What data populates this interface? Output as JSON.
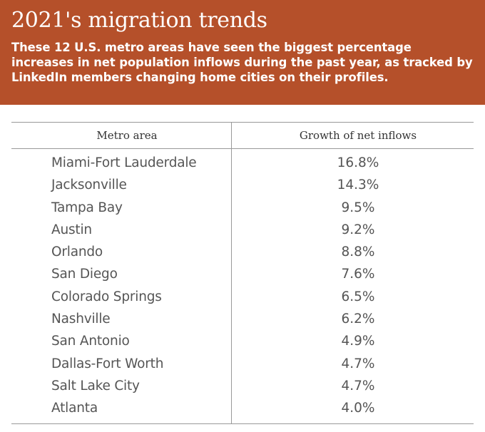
{
  "header": {
    "title": "2021's migration trends",
    "subtitle": "These 12 U.S. metro areas have seen the biggest percentage increases in net population inflows during the past year, as tracked by LinkedIn members changing home cities on their profiles.",
    "background_color": "#b5502a"
  },
  "table": {
    "columns": [
      "Metro area",
      "Growth of net  inflows"
    ],
    "rows": [
      {
        "metro": "Miami-Fort Lauderdale",
        "growth": "16.8%"
      },
      {
        "metro": "Jacksonville",
        "growth": "14.3%"
      },
      {
        "metro": "Tampa Bay",
        "growth": "9.5%"
      },
      {
        "metro": "Austin",
        "growth": "9.2%"
      },
      {
        "metro": "Orlando",
        "growth": "8.8%"
      },
      {
        "metro": "San Diego",
        "growth": "7.6%"
      },
      {
        "metro": "Colorado Springs",
        "growth": "6.5%"
      },
      {
        "metro": "Nashville",
        "growth": "6.2%"
      },
      {
        "metro": "San Antonio",
        "growth": "4.9%"
      },
      {
        "metro": "Dallas-Fort Worth",
        "growth": "4.7%"
      },
      {
        "metro": "Salt Lake City",
        "growth": "4.7%"
      },
      {
        "metro": "Atlanta",
        "growth": "4.0%"
      }
    ]
  }
}
